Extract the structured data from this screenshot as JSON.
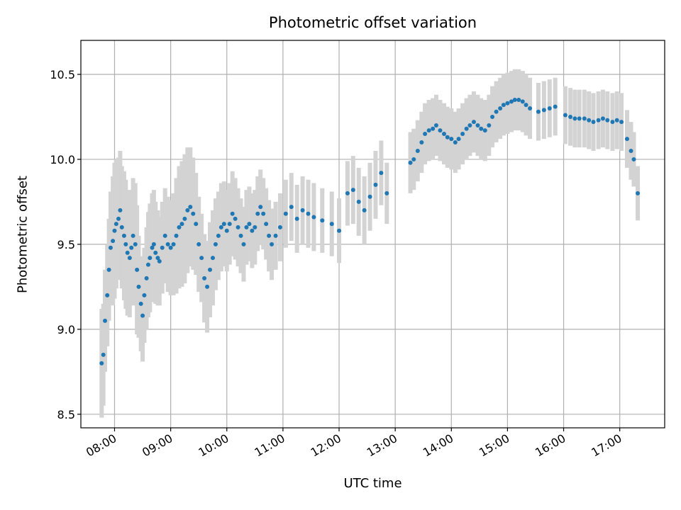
{
  "chart_data": {
    "type": "scatter",
    "title": "Photometric offset variation",
    "xlabel": "UTC time",
    "ylabel": "Photometric offset",
    "x_unit": "UTC hour of day",
    "xlim": [
      7.4,
      17.8
    ],
    "ylim": [
      8.42,
      10.7
    ],
    "xticks": [
      8,
      9,
      10,
      11,
      12,
      13,
      14,
      15,
      16,
      17
    ],
    "xtick_labels": [
      "08:00",
      "09:00",
      "10:00",
      "11:00",
      "12:00",
      "13:00",
      "14:00",
      "15:00",
      "16:00",
      "17:00"
    ],
    "yticks": [
      8.5,
      9.0,
      9.5,
      10.0,
      10.5
    ],
    "ytick_labels": [
      "8.5",
      "9.0",
      "9.5",
      "10.0",
      "10.5"
    ],
    "grid": true,
    "colors": {
      "points": "#1f77b4",
      "error_bars": "#d3d3d3",
      "grid": "#b0b0b0"
    },
    "series": [
      {
        "style": "points with vertical error bars",
        "x": [
          7.77,
          7.8,
          7.83,
          7.87,
          7.9,
          7.93,
          7.97,
          8.0,
          8.03,
          8.07,
          8.1,
          8.13,
          8.17,
          8.2,
          8.23,
          8.27,
          8.3,
          8.33,
          8.37,
          8.4,
          8.43,
          8.47,
          8.5,
          8.53,
          8.57,
          8.6,
          8.63,
          8.67,
          8.7,
          8.73,
          8.77,
          8.8,
          8.85,
          8.9,
          8.95,
          9.0,
          9.05,
          9.1,
          9.15,
          9.2,
          9.25,
          9.3,
          9.35,
          9.4,
          9.45,
          9.5,
          9.55,
          9.6,
          9.65,
          9.7,
          9.75,
          9.8,
          9.85,
          9.9,
          9.95,
          10.0,
          10.05,
          10.1,
          10.15,
          10.2,
          10.25,
          10.3,
          10.35,
          10.4,
          10.45,
          10.5,
          10.55,
          10.6,
          10.65,
          10.7,
          10.75,
          10.8,
          10.87,
          10.95,
          11.05,
          11.15,
          11.25,
          11.35,
          11.45,
          11.55,
          11.7,
          11.87,
          12.0,
          12.15,
          12.25,
          12.35,
          12.45,
          12.55,
          12.65,
          12.75,
          12.85,
          13.27,
          13.33,
          13.4,
          13.47,
          13.53,
          13.6,
          13.67,
          13.73,
          13.8,
          13.87,
          13.93,
          14.0,
          14.07,
          14.13,
          14.2,
          14.27,
          14.33,
          14.4,
          14.47,
          14.53,
          14.6,
          14.67,
          14.73,
          14.8,
          14.87,
          14.93,
          15.0,
          15.07,
          15.13,
          15.2,
          15.27,
          15.33,
          15.4,
          15.55,
          15.65,
          15.75,
          15.85,
          16.03,
          16.12,
          16.2,
          16.28,
          16.37,
          16.45,
          16.53,
          16.62,
          16.7,
          16.78,
          16.87,
          16.95,
          17.03,
          17.13,
          17.2,
          17.25,
          17.32
        ],
        "y": [
          8.8,
          8.85,
          9.05,
          9.2,
          9.35,
          9.48,
          9.52,
          9.58,
          9.62,
          9.65,
          9.7,
          9.6,
          9.55,
          9.5,
          9.45,
          9.42,
          9.48,
          9.55,
          9.5,
          9.35,
          9.25,
          9.15,
          9.08,
          9.2,
          9.3,
          9.38,
          9.42,
          9.48,
          9.5,
          9.45,
          9.42,
          9.4,
          9.48,
          9.55,
          9.5,
          9.48,
          9.5,
          9.55,
          9.6,
          9.62,
          9.65,
          9.7,
          9.72,
          9.68,
          9.62,
          9.5,
          9.42,
          9.3,
          9.25,
          9.35,
          9.42,
          9.5,
          9.55,
          9.6,
          9.62,
          9.58,
          9.62,
          9.68,
          9.65,
          9.6,
          9.55,
          9.5,
          9.6,
          9.62,
          9.58,
          9.6,
          9.68,
          9.72,
          9.68,
          9.62,
          9.55,
          9.5,
          9.55,
          9.6,
          9.68,
          9.72,
          9.65,
          9.7,
          9.68,
          9.66,
          9.64,
          9.62,
          9.58,
          9.8,
          9.82,
          9.75,
          9.7,
          9.78,
          9.85,
          9.92,
          9.8,
          9.98,
          10.0,
          10.05,
          10.1,
          10.15,
          10.17,
          10.18,
          10.2,
          10.17,
          10.15,
          10.13,
          10.12,
          10.1,
          10.12,
          10.15,
          10.18,
          10.2,
          10.22,
          10.2,
          10.18,
          10.17,
          10.2,
          10.25,
          10.28,
          10.3,
          10.32,
          10.33,
          10.34,
          10.35,
          10.35,
          10.34,
          10.32,
          10.3,
          10.28,
          10.29,
          10.3,
          10.31,
          10.26,
          10.25,
          10.24,
          10.24,
          10.24,
          10.23,
          10.22,
          10.23,
          10.24,
          10.23,
          10.22,
          10.23,
          10.22,
          10.12,
          10.05,
          10.0,
          9.8
        ],
        "error": [
          0.32,
          0.3,
          0.3,
          0.3,
          0.3,
          0.33,
          0.38,
          0.4,
          0.38,
          0.36,
          0.35,
          0.36,
          0.38,
          0.38,
          0.37,
          0.35,
          0.34,
          0.34,
          0.36,
          0.38,
          0.3,
          0.28,
          0.27,
          0.28,
          0.3,
          0.31,
          0.32,
          0.32,
          0.32,
          0.3,
          0.28,
          0.26,
          0.27,
          0.28,
          0.28,
          0.28,
          0.3,
          0.34,
          0.36,
          0.37,
          0.38,
          0.37,
          0.35,
          0.33,
          0.3,
          0.28,
          0.26,
          0.26,
          0.27,
          0.28,
          0.28,
          0.27,
          0.26,
          0.26,
          0.25,
          0.24,
          0.24,
          0.25,
          0.24,
          0.23,
          0.22,
          0.22,
          0.22,
          0.22,
          0.22,
          0.22,
          0.22,
          0.22,
          0.21,
          0.21,
          0.21,
          0.21,
          0.2,
          0.2,
          0.2,
          0.2,
          0.2,
          0.2,
          0.2,
          0.2,
          0.19,
          0.19,
          0.19,
          0.19,
          0.2,
          0.2,
          0.2,
          0.2,
          0.2,
          0.19,
          0.18,
          0.18,
          0.18,
          0.18,
          0.18,
          0.18,
          0.18,
          0.18,
          0.18,
          0.18,
          0.18,
          0.18,
          0.18,
          0.18,
          0.18,
          0.18,
          0.18,
          0.18,
          0.18,
          0.18,
          0.18,
          0.18,
          0.18,
          0.18,
          0.18,
          0.18,
          0.18,
          0.18,
          0.18,
          0.18,
          0.18,
          0.18,
          0.18,
          0.18,
          0.17,
          0.17,
          0.17,
          0.17,
          0.17,
          0.17,
          0.17,
          0.17,
          0.17,
          0.17,
          0.17,
          0.17,
          0.17,
          0.17,
          0.17,
          0.17,
          0.17,
          0.17,
          0.17,
          0.16,
          0.16
        ]
      }
    ]
  }
}
